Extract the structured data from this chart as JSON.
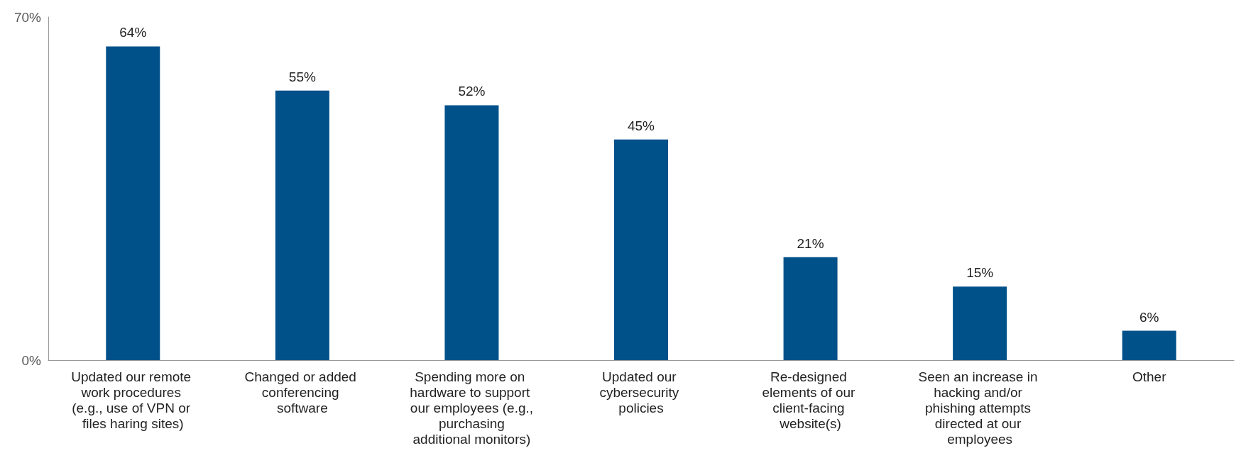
{
  "chart_data": {
    "type": "bar",
    "categories": [
      "Updated our remote work procedures (e.g., use of VPN or files haring sites)",
      "Changed or added conferencing software",
      "Spending more on hardware to support our employees (e.g., purchasing additional monitors)",
      "Updated our cybersecurity policies",
      "Re-designed elements of our client-facing website(s)",
      "Seen an increase in hacking and/or phishing attempts directed at our employees",
      "Other"
    ],
    "values": [
      64,
      55,
      52,
      45,
      21,
      15,
      6
    ],
    "value_labels": [
      "64%",
      "55%",
      "52%",
      "45%",
      "21%",
      "15%",
      "6%"
    ],
    "color": "#00508a",
    "ylim": [
      0,
      70
    ],
    "yticks": [
      {
        "value": 0,
        "label": "0%"
      },
      {
        "value": 70,
        "label": "70%"
      }
    ],
    "grid": false
  }
}
